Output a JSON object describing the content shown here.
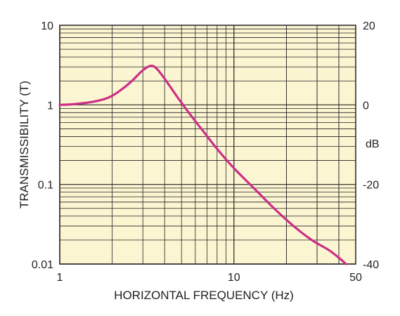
{
  "chart_data": {
    "type": "line",
    "title": "",
    "xlabel": "HORIZONTAL FREQUENCY (Hz)",
    "ylabel": "TRANSMISSIBILITY (T)",
    "y2label": "dB",
    "x_scale": "log",
    "y_scale": "log",
    "xlim": [
      1,
      50
    ],
    "ylim": [
      0.01,
      10
    ],
    "y2lim": [
      -40,
      20
    ],
    "grid": true,
    "legend": "none",
    "x_tick_labels": [
      "1",
      "10",
      "50"
    ],
    "y_tick_labels": [
      "0.01",
      "0.1",
      "1",
      "10"
    ],
    "y2_tick_labels": [
      "-40",
      "-20",
      "0",
      "20"
    ],
    "x_ticks": [
      1,
      10,
      50
    ],
    "y_ticks": [
      0.01,
      0.1,
      1,
      10
    ],
    "y2_ticks": [
      -40,
      -20,
      0,
      20
    ],
    "series": [
      {
        "x": [
          1,
          1.2,
          1.5,
          1.8,
          2.0,
          2.3,
          2.6,
          2.9,
          3.2,
          3.4,
          3.6,
          3.9,
          4.3,
          4.8,
          5.5,
          6.5,
          8,
          10,
          13,
          17,
          22,
          28,
          35,
          40,
          44
        ],
        "y": [
          1.0,
          1.02,
          1.08,
          1.18,
          1.3,
          1.6,
          2.0,
          2.55,
          3.0,
          3.1,
          2.85,
          2.3,
          1.7,
          1.2,
          0.8,
          0.5,
          0.28,
          0.16,
          0.09,
          0.05,
          0.03,
          0.02,
          0.015,
          0.012,
          0.01
        ]
      }
    ],
    "colors": {
      "background": "#FCF5D2",
      "grid": "#222222",
      "line": "#CB2F86"
    }
  }
}
